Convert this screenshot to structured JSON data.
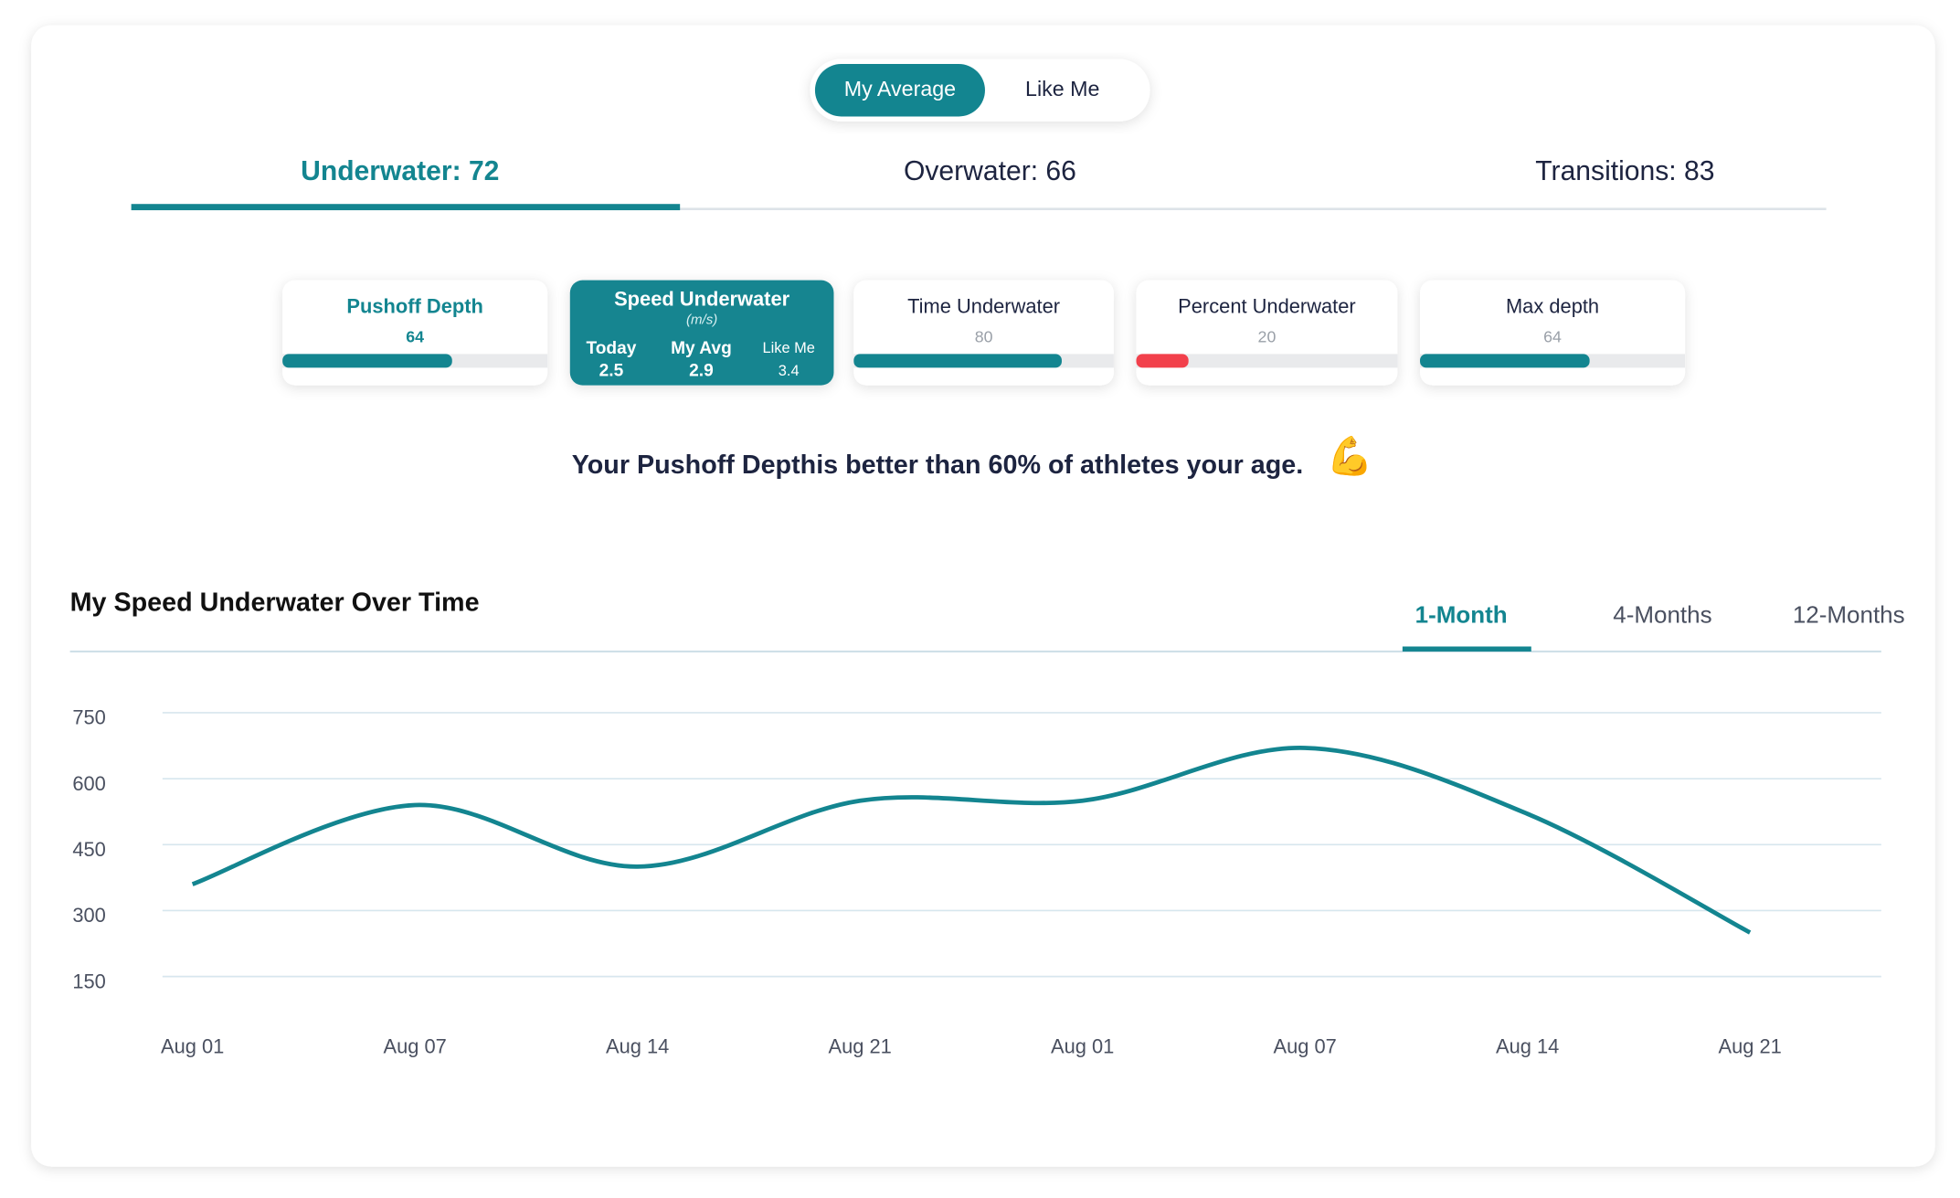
{
  "toggle": {
    "options": [
      "My Average",
      "Like Me"
    ],
    "active": 0
  },
  "tabs": {
    "items": [
      "Underwater: 72",
      "Overwater: 66",
      "Transitions: 83"
    ],
    "active": 0
  },
  "cards": [
    {
      "title": "Pushoff Depth",
      "value": 64,
      "color": "#138590",
      "highlight": true
    },
    {
      "title": "Speed Underwater",
      "unit": "(m/s)",
      "stats": [
        {
          "label": "Today",
          "value": 2.5
        },
        {
          "label": "My Avg",
          "value": 2.9
        },
        {
          "label": "Like Me",
          "value": 3.4
        }
      ]
    },
    {
      "title": "Time Underwater",
      "value": 80,
      "color": "#138590"
    },
    {
      "title": "Percent Underwater",
      "value": 20,
      "color": "#f2404b"
    },
    {
      "title": "Max depth",
      "value": 64,
      "color": "#138590"
    }
  ],
  "message": "Your Pushoff Depthis better than 60% of athletes your age.",
  "emoji": "💪",
  "range_tabs": {
    "items": [
      "1-Month",
      "4-Months",
      "12-Months"
    ],
    "active": 0
  },
  "chart_data": {
    "type": "line",
    "title": "My Speed Underwater Over Time",
    "categories": [
      "Aug 01",
      "Aug 07",
      "Aug 14",
      "Aug 21",
      "Aug 01",
      "Aug 07",
      "Aug 14",
      "Aug 21"
    ],
    "values": [
      360,
      540,
      400,
      550,
      550,
      670,
      520,
      250
    ],
    "color": "#138590",
    "ylim": [
      150,
      750
    ],
    "yticks": [
      150,
      300,
      450,
      600,
      750
    ],
    "grid": true
  }
}
